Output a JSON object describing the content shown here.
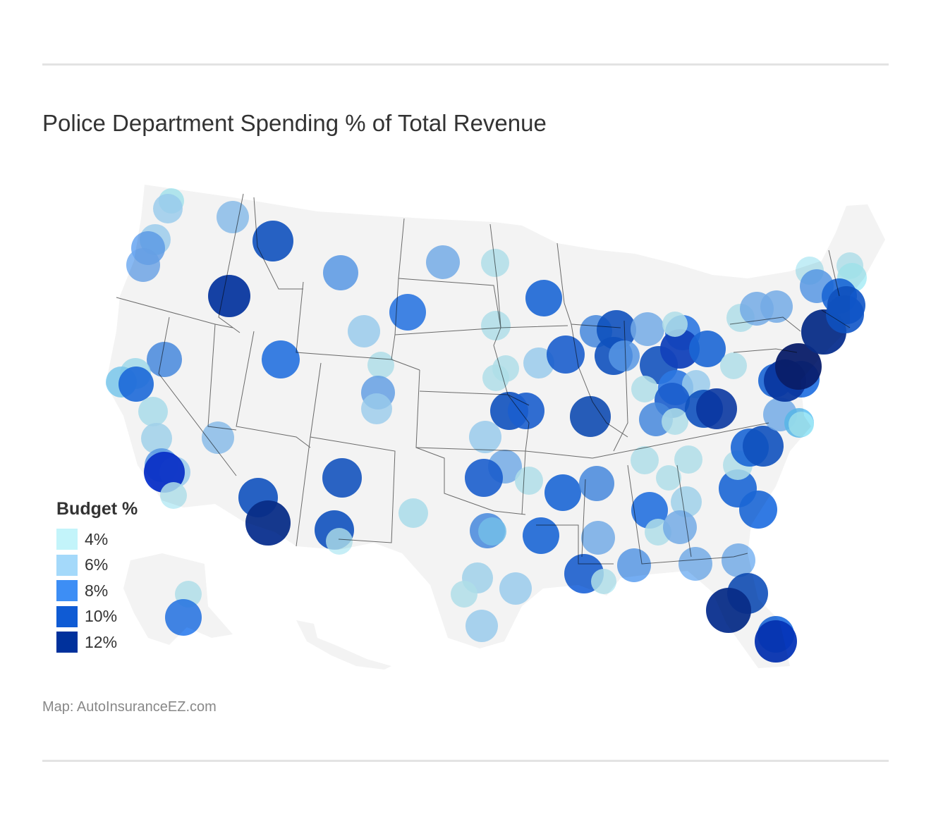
{
  "title": "Police Department Spending % of Total Revenue",
  "source": "Map: AutoInsuranceEZ.com",
  "legend": {
    "title": "Budget %",
    "items": [
      {
        "label": "4%",
        "color": "#c3f4fa"
      },
      {
        "label": "6%",
        "color": "#a4d9fa"
      },
      {
        "label": "8%",
        "color": "#3d8ef5"
      },
      {
        "label": "10%",
        "color": "#0f5bd4"
      },
      {
        "label": "12%",
        "color": "#00319c"
      }
    ]
  },
  "chart_data": {
    "type": "scatter",
    "map": "United States (with Alaska and Hawaii insets)",
    "color_scale": "Budget %",
    "cities": [
      {
        "region": "Washington",
        "budget": 4
      },
      {
        "region": "Washington",
        "budget": 5
      },
      {
        "region": "Washington",
        "budget": 6
      },
      {
        "region": "Washington",
        "budget": 8
      },
      {
        "region": "Oregon",
        "budget": 7
      },
      {
        "region": "Oregon",
        "budget": 10
      },
      {
        "region": "Oregon",
        "budget": 12
      },
      {
        "region": "Idaho",
        "budget": 6
      },
      {
        "region": "Montana",
        "budget": 10
      },
      {
        "region": "Wyoming",
        "budget": 7
      },
      {
        "region": "Utah",
        "budget": 9
      },
      {
        "region": "Colorado",
        "budget": 6
      },
      {
        "region": "Colorado",
        "budget": 5
      },
      {
        "region": "Colorado",
        "budget": 7
      },
      {
        "region": "Nevada",
        "budget": 8
      },
      {
        "region": "Nevada",
        "budget": 6
      },
      {
        "region": "California",
        "budget": 4
      },
      {
        "region": "California",
        "budget": 6
      },
      {
        "region": "California",
        "budget": 8
      },
      {
        "region": "California",
        "budget": 5
      },
      {
        "region": "California",
        "budget": 12
      },
      {
        "region": "Arizona",
        "budget": 10
      },
      {
        "region": "Arizona",
        "budget": 12
      },
      {
        "region": "New Mexico",
        "budget": 10
      },
      {
        "region": "Texas",
        "budget": 10
      },
      {
        "region": "Texas",
        "budget": 8
      },
      {
        "region": "Texas",
        "budget": 6
      },
      {
        "region": "Texas",
        "budget": 9
      },
      {
        "region": "Oklahoma",
        "budget": 10
      },
      {
        "region": "Kansas",
        "budget": 6
      },
      {
        "region": "Nebraska",
        "budget": 5
      },
      {
        "region": "Minnesota",
        "budget": 9
      },
      {
        "region": "Missouri",
        "budget": 10
      },
      {
        "region": "Missouri",
        "budget": 12
      },
      {
        "region": "Illinois",
        "budget": 10
      },
      {
        "region": "Indiana",
        "budget": 9
      },
      {
        "region": "Ohio",
        "budget": 11
      },
      {
        "region": "Kentucky",
        "budget": 10
      },
      {
        "region": "Tennessee",
        "budget": 9
      },
      {
        "region": "Louisiana",
        "budget": 10
      },
      {
        "region": "Florida",
        "budget": 12
      },
      {
        "region": "Florida",
        "budget": 11
      },
      {
        "region": "Georgia",
        "budget": 10
      },
      {
        "region": "North Carolina",
        "budget": 10
      },
      {
        "region": "Virginia",
        "budget": 6
      },
      {
        "region": "New York",
        "budget": 12
      },
      {
        "region": "Pennsylvania",
        "budget": 11
      },
      {
        "region": "Massachusetts",
        "budget": 10
      },
      {
        "region": "Maine",
        "budget": 5
      },
      {
        "region": "Alaska",
        "budget": 8
      },
      {
        "region": "Alaska",
        "budget": 4
      }
    ]
  }
}
